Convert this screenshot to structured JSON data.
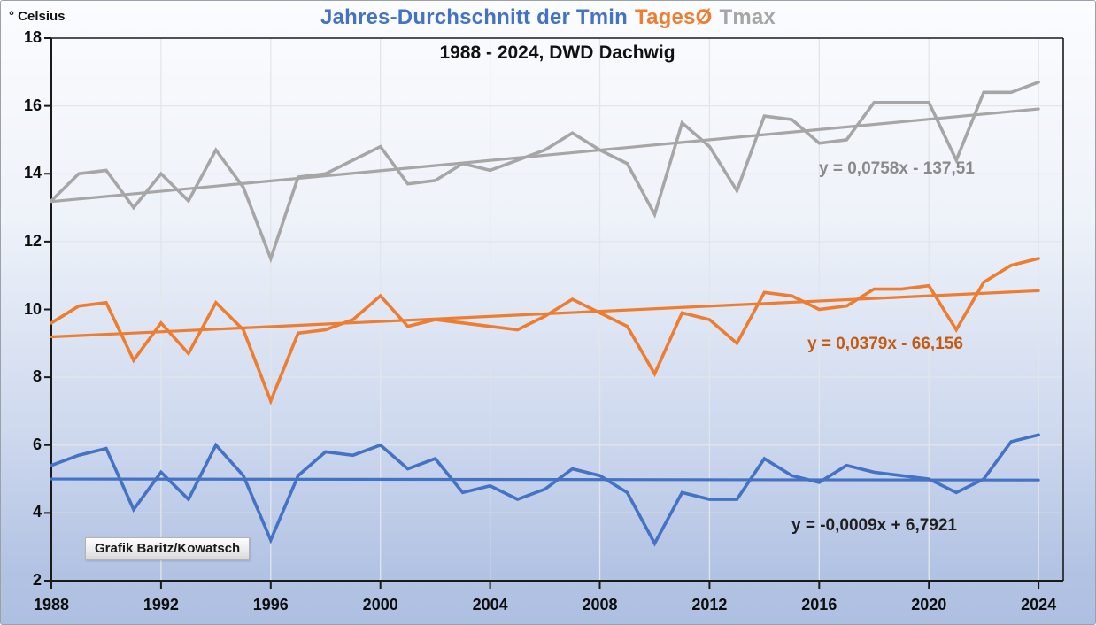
{
  "page": {
    "title": {
      "part1": "Jahres-Durchschnitt der Tmin",
      "part2": "TagesØ",
      "part3": "Tmax"
    },
    "title_colors": [
      "#4472C4",
      "#ED7D31",
      "#A6A6A6"
    ],
    "subtitle": "1988 - 2024, DWD Dachwig",
    "y_axis_unit": "° Celsius",
    "credit": "Grafik Baritz/Kowatsch"
  },
  "chart_data": {
    "type": "line",
    "title": "Jahres-Durchschnitt der Tmin TagesØ Tmax",
    "subtitle": "1988 - 2024, DWD Dachwig",
    "ylabel": "° Celsius",
    "grid": true,
    "background": "gradient white to light blue",
    "grid_color": "#e2e6eb",
    "axis_color": "#1a1a1a",
    "ylim": [
      2,
      18
    ],
    "xlim": [
      1988,
      2024.9
    ],
    "y_ticks": [
      18,
      16,
      14,
      12,
      10,
      8,
      6,
      4,
      2
    ],
    "x_ticks": [
      1988,
      1992,
      1996,
      2000,
      2004,
      2008,
      2012,
      2016,
      2020,
      2024
    ],
    "x_tick_labels": [
      "1988",
      "1992",
      "1996",
      "2000",
      "2004",
      "2008",
      "2012",
      "2016",
      "2020",
      "2024"
    ],
    "x": [
      1988,
      1989,
      1990,
      1991,
      1992,
      1993,
      1994,
      1995,
      1996,
      1997,
      1998,
      1999,
      2000,
      2001,
      2002,
      2003,
      2004,
      2005,
      2006,
      2007,
      2008,
      2009,
      2010,
      2011,
      2012,
      2013,
      2014,
      2015,
      2016,
      2017,
      2018,
      2019,
      2020,
      2021,
      2022,
      2023,
      2024
    ],
    "series": [
      {
        "name": "Tmax",
        "color": "#A6A6A6",
        "values": [
          13.2,
          14.0,
          14.1,
          13.0,
          14.0,
          13.2,
          14.7,
          13.6,
          11.5,
          13.9,
          14.0,
          14.4,
          14.8,
          13.7,
          13.8,
          14.3,
          14.1,
          14.4,
          14.7,
          15.2,
          14.7,
          14.3,
          12.8,
          15.5,
          14.8,
          13.5,
          15.7,
          15.6,
          14.9,
          15.0,
          16.1,
          16.1,
          16.1,
          14.4,
          16.4,
          16.4,
          16.7
        ]
      },
      {
        "name": "TagesØ",
        "color": "#ED7D31",
        "values": [
          9.6,
          10.1,
          10.2,
          8.5,
          9.6,
          8.7,
          10.2,
          9.4,
          7.3,
          9.3,
          9.4,
          9.7,
          10.4,
          9.5,
          9.7,
          9.6,
          9.5,
          9.4,
          9.8,
          10.3,
          9.9,
          9.5,
          8.1,
          9.9,
          9.7,
          9.0,
          10.5,
          10.4,
          10.0,
          10.1,
          10.6,
          10.6,
          10.7,
          9.4,
          10.8,
          11.3,
          11.5
        ]
      },
      {
        "name": "Tmin",
        "color": "#4472C4",
        "values": [
          5.4,
          5.7,
          5.9,
          4.1,
          5.2,
          4.4,
          6.0,
          5.1,
          3.2,
          5.1,
          5.8,
          5.7,
          6.0,
          5.3,
          5.6,
          4.6,
          4.8,
          4.4,
          4.7,
          5.3,
          5.1,
          4.6,
          3.1,
          4.6,
          4.4,
          4.4,
          5.6,
          5.1,
          4.9,
          5.4,
          5.2,
          5.1,
          5.0,
          4.6,
          5.0,
          6.1,
          6.3
        ]
      }
    ],
    "trendlines": [
      {
        "series": "Tmax",
        "equation": "y = 0,0758x - 137,51",
        "color": "#A6A6A6",
        "label_color": "#8a8a8a",
        "start_value": 13.18,
        "end_value": 15.91
      },
      {
        "series": "TagesØ",
        "equation": "y = 0,0379x - 66,156",
        "color": "#ED7D31",
        "label_color": "#C55A11",
        "start_value": 9.19,
        "end_value": 10.55
      },
      {
        "series": "Tmin",
        "equation": "y = -0,0009x + 6,7921",
        "color": "#4472C4",
        "label_color": "#1f1f1f",
        "start_value": 5.0,
        "end_value": 4.97
      }
    ],
    "legend_position": "in-title"
  }
}
